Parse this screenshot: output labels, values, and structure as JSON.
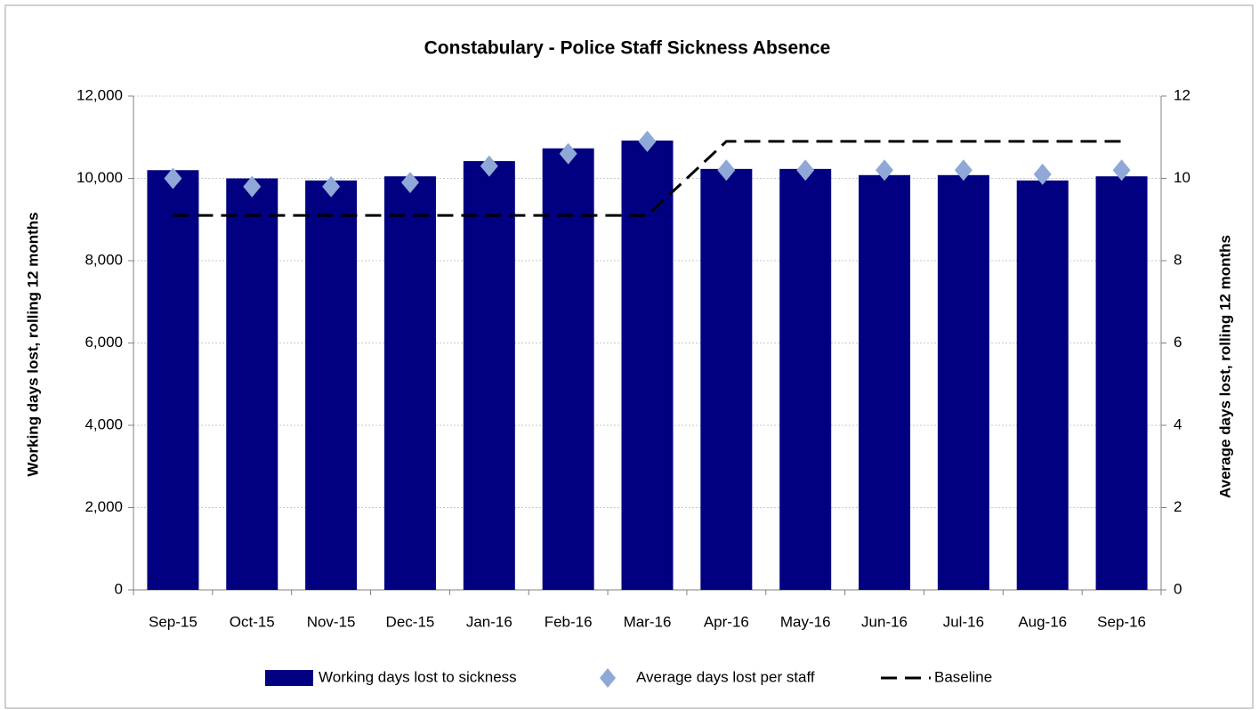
{
  "chart_data": {
    "type": "bar",
    "title": "Constabulary - Police Staff Sickness Absence",
    "ylabel": "Working days  lost, rolling  12 months",
    "y2label": "Average days  lost, rolling 12 months",
    "categories": [
      "Sep-15",
      "Oct-15",
      "Nov-15",
      "Dec-15",
      "Jan-16",
      "Feb-16",
      "Mar-16",
      "Apr-16",
      "May-16",
      "Jun-16",
      "Jul-16",
      "Aug-16",
      "Sep-16"
    ],
    "series": [
      {
        "name": "Working days lost to sickness",
        "type": "bar",
        "color": "#000080",
        "values": [
          10200,
          10000,
          9950,
          10050,
          10420,
          10730,
          10920,
          10230,
          10230,
          10080,
          10080,
          9950,
          10050
        ]
      },
      {
        "name": "Average days lost per staff",
        "type": "scatter",
        "axis": "y2",
        "color": "#8fa8d8",
        "values": [
          10.0,
          9.8,
          9.8,
          9.9,
          10.3,
          10.6,
          10.9,
          10.2,
          10.2,
          10.2,
          10.2,
          10.1,
          10.2
        ]
      },
      {
        "name": "Baseline",
        "type": "line",
        "axis": "y2",
        "color": "#000000",
        "dashed": true,
        "values": [
          9.1,
          9.1,
          9.1,
          9.1,
          9.1,
          9.1,
          9.1,
          10.9,
          10.9,
          10.9,
          10.9,
          10.9,
          10.9
        ]
      }
    ],
    "ylim": [
      0,
      12000
    ],
    "yticks": [
      0,
      {
        "value": 2000,
        "label": "2,000"
      },
      {
        "value": 4000,
        "label": "4,000"
      },
      {
        "value": 6000,
        "label": "6,000"
      },
      {
        "value": 8000,
        "label": "8,000"
      },
      {
        "value": 10000,
        "label": "10,000"
      },
      {
        "value": 12000,
        "label": "12,000"
      }
    ],
    "y2lim": [
      0,
      12
    ],
    "y2ticks": [
      0,
      2,
      4,
      6,
      8,
      10,
      12
    ],
    "grid": true,
    "legend": "bottom"
  }
}
